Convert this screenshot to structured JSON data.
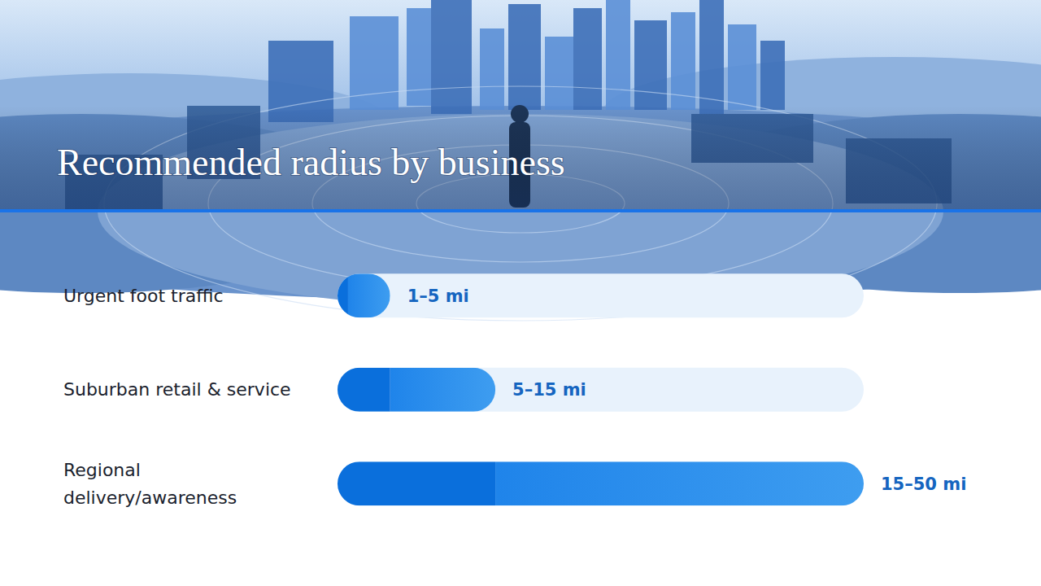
{
  "chart_data": {
    "type": "bar",
    "orientation": "horizontal",
    "title": "Recommended radius by business",
    "categories": [
      "Urgent foot traffic",
      "Suburban retail & service",
      "Regional delivery/awareness"
    ],
    "low": [
      1,
      5,
      15
    ],
    "values": [
      5,
      15,
      50
    ],
    "value_labels": [
      "1–5 mi",
      "5–15 mi",
      "15–50 mi"
    ],
    "data_labels": true,
    "xlim": [
      0,
      50
    ],
    "tick_labels": false,
    "grid": false,
    "color": "#1f84ea"
  }
}
